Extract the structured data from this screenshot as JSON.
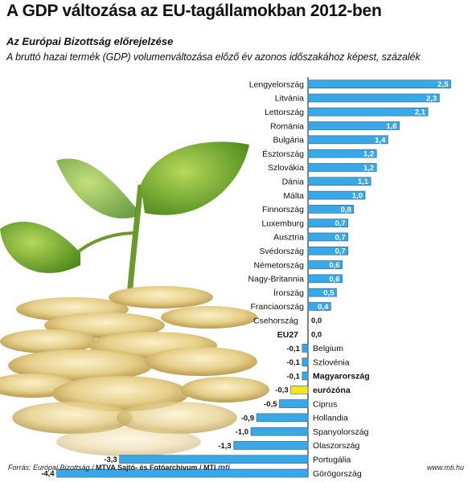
{
  "header": {
    "title": "A GDP változása az EU-tagállamokban 2012-ben",
    "subtitle": "Az Európai Bizottság előrejelzése",
    "description": "A bruttó hazai termék (GDP) volumenváltozása előző év azonos időszakához képest, százalék"
  },
  "footer": {
    "source": "Forrás: Európai Bizottság / ",
    "org": "MTVA Sajtó- és Fotóarchívum / MTI",
    "logo": "mti",
    "site": "www.mti.hu"
  },
  "colors": {
    "bar": "#3aa8e6",
    "highlight": "#f5e51c",
    "bar_stroke": "#1c5f8a"
  },
  "chart_data": {
    "type": "bar",
    "orientation": "horizontal",
    "xlim": [
      -4.4,
      2.5
    ],
    "categories": [
      "Lengyelország",
      "Litvánia",
      "Lettország",
      "Románia",
      "Bulgária",
      "Észtország",
      "Szlovákia",
      "Dánia",
      "Málta",
      "Finnország",
      "Luxemburg",
      "Ausztria",
      "Svédország",
      "Németország",
      "Nagy-Britannia",
      "Írország",
      "Franciaország",
      "Csehország",
      "EU27",
      "Belgium",
      "Szlovénia",
      "Magyarország",
      "eurózóna",
      "Ciprus",
      "Hollandia",
      "Spanyolország",
      "Olaszország",
      "Portugália",
      "Görögország"
    ],
    "values": [
      2.5,
      2.3,
      2.1,
      1.6,
      1.4,
      1.2,
      1.2,
      1.1,
      1.0,
      0.8,
      0.7,
      0.7,
      0.7,
      0.6,
      0.6,
      0.5,
      0.4,
      0.0,
      0.0,
      -0.1,
      -0.1,
      -0.1,
      -0.3,
      -0.5,
      -0.9,
      -1.0,
      -1.3,
      -3.3,
      -4.4
    ],
    "value_labels": [
      "2,5",
      "2,3",
      "2,1",
      "1,6",
      "1,4",
      "1,2",
      "1,2",
      "1,1",
      "1,0",
      "0,8",
      "0,7",
      "0,7",
      "0,7",
      "0,6",
      "0,6",
      "0,5",
      "0,4",
      "0,0",
      "0,0",
      "-0,1",
      "-0,1",
      "-0,1",
      "-0,3",
      "-0,5",
      "-0,9",
      "-1,0",
      "-1,3",
      "-3,3",
      "-4,4"
    ],
    "bold": [
      "EU27",
      "Magyarország",
      "eurózóna"
    ],
    "highlighted": [
      "eurózóna"
    ]
  }
}
